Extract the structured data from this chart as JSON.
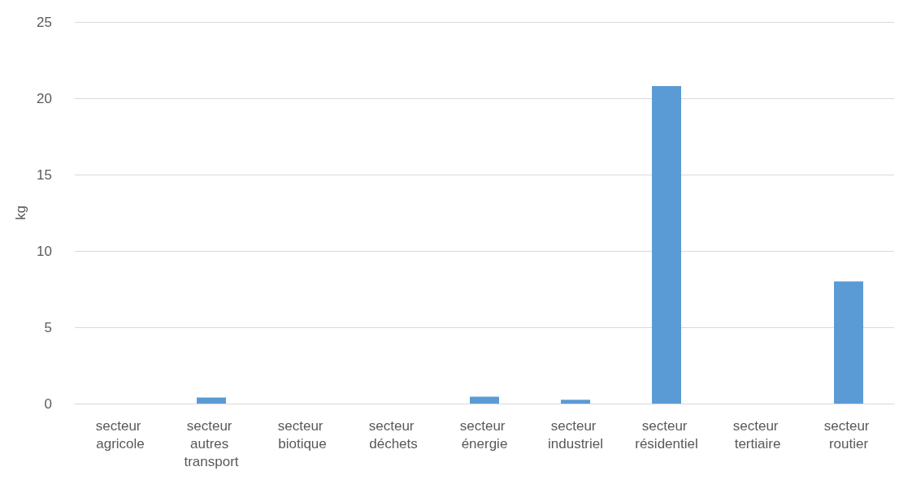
{
  "chart_data": {
    "type": "bar",
    "ylabel": "kg",
    "categories": [
      "secteur agricole",
      "secteur autres transport",
      "secteur biotique",
      "secteur déchets",
      "secteur énergie",
      "secteur industriel",
      "secteur résidentiel",
      "secteur tertiaire",
      "secteur routier"
    ],
    "values": [
      0,
      0.4,
      0,
      0,
      0.45,
      0.25,
      20.8,
      0,
      8.0
    ],
    "color": "#5b9bd5",
    "ylim": [
      0,
      25
    ],
    "yticks": [
      0,
      5,
      10,
      15,
      20,
      25
    ],
    "grid": "y"
  }
}
